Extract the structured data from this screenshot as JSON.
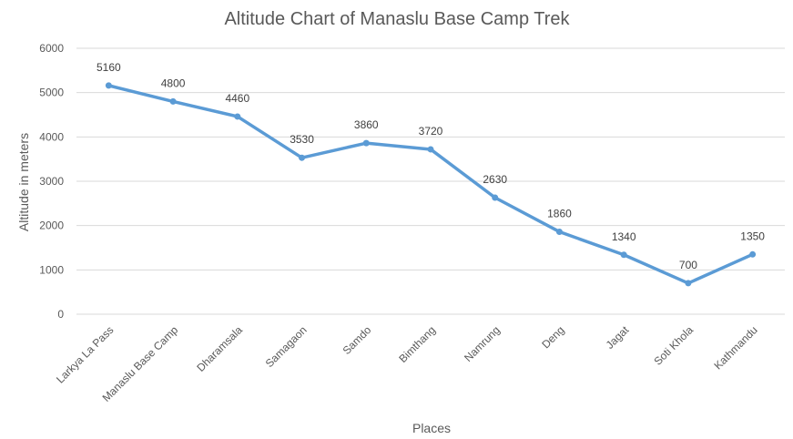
{
  "chart_data": {
    "type": "line",
    "title": "Altitude Chart of Manaslu Base Camp Trek",
    "xlabel": "Places",
    "ylabel": "Altitude in meters",
    "categories": [
      "Larkya La Pass",
      "Manaslu Base Camp",
      "Dharamsala",
      "Samagaon",
      "Samdo",
      "Bimthang",
      "Namrung",
      "Deng",
      "Jagat",
      "Soti Khola",
      "Kathmandu"
    ],
    "series": [
      {
        "values": [
          5160,
          4800,
          4460,
          3530,
          3860,
          3720,
          2630,
          1860,
          1340,
          700,
          1350
        ]
      }
    ],
    "ylim": [
      0,
      6000
    ],
    "yticks": [
      0,
      1000,
      2000,
      3000,
      4000,
      5000,
      6000
    ],
    "grid": true,
    "legend": "none",
    "colors": {
      "line": "#5b9bd5"
    }
  }
}
